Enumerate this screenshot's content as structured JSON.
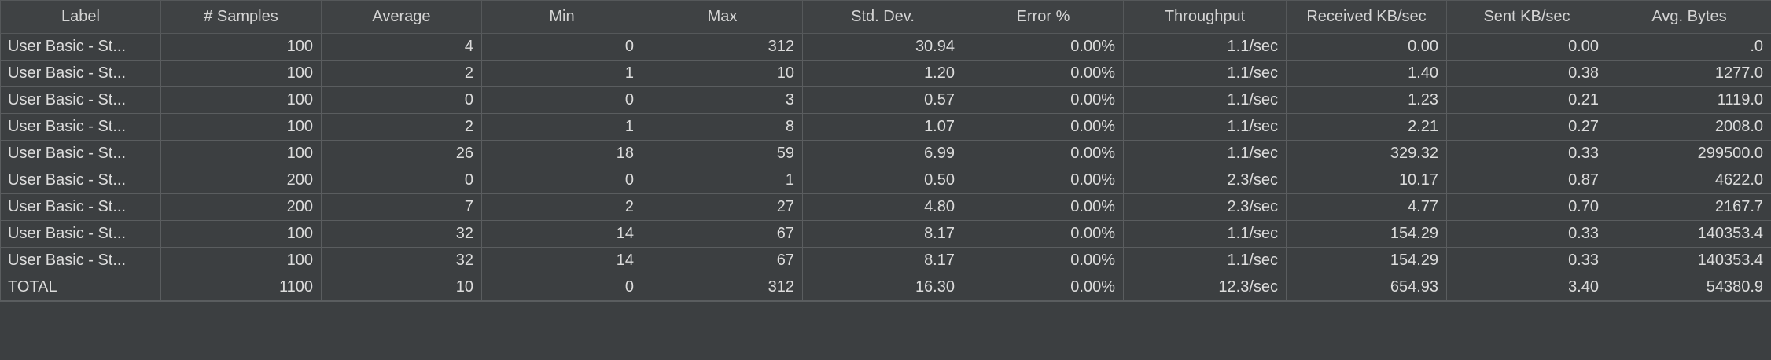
{
  "columns": [
    "Label",
    "# Samples",
    "Average",
    "Min",
    "Max",
    "Std. Dev.",
    "Error %",
    "Throughput",
    "Received KB/sec",
    "Sent KB/sec",
    "Avg. Bytes"
  ],
  "rows": [
    [
      "User Basic - St...",
      "100",
      "4",
      "0",
      "312",
      "30.94",
      "0.00%",
      "1.1/sec",
      "0.00",
      "0.00",
      ".0"
    ],
    [
      "User Basic - St...",
      "100",
      "2",
      "1",
      "10",
      "1.20",
      "0.00%",
      "1.1/sec",
      "1.40",
      "0.38",
      "1277.0"
    ],
    [
      "User Basic - St...",
      "100",
      "0",
      "0",
      "3",
      "0.57",
      "0.00%",
      "1.1/sec",
      "1.23",
      "0.21",
      "1119.0"
    ],
    [
      "User Basic - St...",
      "100",
      "2",
      "1",
      "8",
      "1.07",
      "0.00%",
      "1.1/sec",
      "2.21",
      "0.27",
      "2008.0"
    ],
    [
      "User Basic - St...",
      "100",
      "26",
      "18",
      "59",
      "6.99",
      "0.00%",
      "1.1/sec",
      "329.32",
      "0.33",
      "299500.0"
    ],
    [
      "User Basic - St...",
      "200",
      "0",
      "0",
      "1",
      "0.50",
      "0.00%",
      "2.3/sec",
      "10.17",
      "0.87",
      "4622.0"
    ],
    [
      "User Basic - St...",
      "200",
      "7",
      "2",
      "27",
      "4.80",
      "0.00%",
      "2.3/sec",
      "4.77",
      "0.70",
      "2167.7"
    ],
    [
      "User Basic - St...",
      "100",
      "32",
      "14",
      "67",
      "8.17",
      "0.00%",
      "1.1/sec",
      "154.29",
      "0.33",
      "140353.4"
    ],
    [
      "User Basic - St...",
      "100",
      "32",
      "14",
      "67",
      "8.17",
      "0.00%",
      "1.1/sec",
      "154.29",
      "0.33",
      "140353.4"
    ]
  ],
  "total": [
    "TOTAL",
    "1100",
    "10",
    "0",
    "312",
    "16.30",
    "0.00%",
    "12.3/sec",
    "654.93",
    "3.40",
    "54380.9"
  ]
}
